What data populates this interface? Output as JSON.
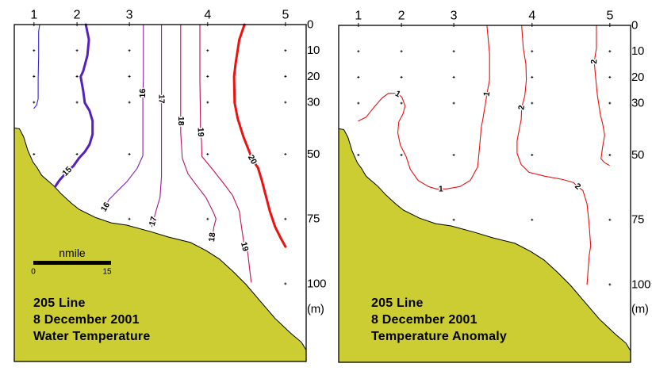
{
  "chart_data": [
    {
      "type": "line",
      "title_lines": [
        "205 Line",
        "8 December 2001",
        "Water Temperature"
      ],
      "xlabel": "",
      "ylabel": "(m)",
      "xlim": [
        -3.8,
        52.5
      ],
      "ylim": [
        0,
        130
      ],
      "y_ticks": [
        0,
        10,
        20,
        30,
        50,
        75,
        100
      ],
      "stations": [
        {
          "label": "1",
          "distance": 0,
          "sample_depths": [
            10,
            20,
            30,
            50
          ]
        },
        {
          "label": "2",
          "distance": 8.3,
          "sample_depths": [
            10,
            20,
            30,
            50
          ]
        },
        {
          "label": "3",
          "distance": 18.4,
          "sample_depths": [
            10,
            20,
            30,
            50,
            75
          ]
        },
        {
          "label": "4",
          "distance": 33.5,
          "sample_depths": [
            10,
            20,
            30,
            50,
            75
          ]
        },
        {
          "label": "5",
          "distance": 48.5,
          "sample_depths": [
            10,
            20,
            30,
            50,
            75,
            100
          ]
        }
      ],
      "scale_bar": {
        "label": "nmile",
        "start_label": "0",
        "end_label": "15",
        "length": 15
      },
      "seabed": {
        "color": "#CCCC33",
        "points": [
          [
            -3.8,
            39.9
          ],
          [
            -2.8,
            40.2
          ],
          [
            -2.0,
            43.3
          ],
          [
            -1.2,
            48.5
          ],
          [
            -0.2,
            53.0
          ],
          [
            0.6,
            55.2
          ],
          [
            1.5,
            58.2
          ],
          [
            2.6,
            60.1
          ],
          [
            3.8,
            62.2
          ],
          [
            5.2,
            65.2
          ],
          [
            7.2,
            68.9
          ],
          [
            8.7,
            71.3
          ],
          [
            11.8,
            74.4
          ],
          [
            14.9,
            76.5
          ],
          [
            17.9,
            77.4
          ],
          [
            22.5,
            79.9
          ],
          [
            26.0,
            82.0
          ],
          [
            30.2,
            84.1
          ],
          [
            33.2,
            87.2
          ],
          [
            35.8,
            90.5
          ],
          [
            38.3,
            95.1
          ],
          [
            40.9,
            100.3
          ],
          [
            43.5,
            106.4
          ],
          [
            46.5,
            113.4
          ],
          [
            49.6,
            119.2
          ],
          [
            51.6,
            122.6
          ],
          [
            52.5,
            125.6
          ]
        ]
      },
      "series": [
        {
          "level": null,
          "color": "#3322CC",
          "emphasis": false,
          "points": [
            [
              1.1,
              0
            ],
            [
              0.9,
              2.7
            ],
            [
              0.9,
              11.9
            ],
            [
              0.8,
              21.0
            ],
            [
              0.8,
              28.7
            ],
            [
              0.5,
              31.1
            ],
            [
              0,
              32.3
            ]
          ],
          "labels": []
        },
        {
          "name": "15",
          "level": 15,
          "color": "#5520C0",
          "emphasis": true,
          "points": [
            [
              10.0,
              0
            ],
            [
              10.6,
              5.8
            ],
            [
              10.3,
              11.9
            ],
            [
              9.5,
              18.0
            ],
            [
              9.0,
              20.1
            ],
            [
              9.5,
              25.6
            ],
            [
              9.8,
              30.2
            ],
            [
              10.7,
              33.2
            ],
            [
              11.3,
              37.2
            ],
            [
              11.3,
              42.4
            ],
            [
              10.7,
              46.3
            ],
            [
              9.8,
              49.1
            ],
            [
              8.7,
              51.5
            ],
            [
              7.6,
              54.6
            ],
            [
              6.4,
              56.7
            ],
            [
              4.9,
              60.1
            ],
            [
              4.1,
              62.5
            ]
          ],
          "labels": [
            [
              6.4,
              56.7
            ]
          ]
        },
        {
          "name": "16",
          "level": 16,
          "color": "#8020B0",
          "emphasis": false,
          "points": [
            [
              21.1,
              0
            ],
            [
              21.1,
              21.0
            ],
            [
              21.0,
              26.5
            ],
            [
              21.0,
              36.3
            ],
            [
              21.0,
              50.6
            ],
            [
              19.9,
              55.5
            ],
            [
              17.9,
              60.7
            ],
            [
              15.9,
              64.6
            ],
            [
              14.4,
              67.7
            ],
            [
              13.8,
              70.4
            ],
            [
              13.2,
              71.6
            ]
          ],
          "labels": [
            [
              21.0,
              26.5
            ],
            [
              13.8,
              70.4
            ]
          ]
        },
        {
          "name": "17",
          "level": 17,
          "color": "#A01890",
          "emphasis": false,
          "points": [
            [
              24.6,
              0
            ],
            [
              24.6,
              28.7
            ],
            [
              24.6,
              36.3
            ],
            [
              24.6,
              58.5
            ],
            [
              24.3,
              66.8
            ],
            [
              23.7,
              70.7
            ],
            [
              23.0,
              75.9
            ],
            [
              22.7,
              78.0
            ]
          ],
          "labels": [
            [
              24.6,
              28.7
            ],
            [
              23.0,
              75.9
            ]
          ]
        },
        {
          "name": "18",
          "level": 18,
          "color": "#B0146E",
          "emphasis": false,
          "points": [
            [
              28.3,
              0
            ],
            [
              28.3,
              33.2
            ],
            [
              28.3,
              37.2
            ],
            [
              28.3,
              41.5
            ],
            [
              28.6,
              51.5
            ],
            [
              29.7,
              57.6
            ],
            [
              31.2,
              61.6
            ],
            [
              33.2,
              66.8
            ],
            [
              34.7,
              72.9
            ],
            [
              35.1,
              75.0
            ],
            [
              34.7,
              78.0
            ],
            [
              34.4,
              82.0
            ],
            [
              34.4,
              83.5
            ]
          ],
          "labels": [
            [
              28.3,
              37.2
            ],
            [
              34.4,
              82.0
            ]
          ]
        },
        {
          "name": "19",
          "level": 19,
          "color": "#C8104C",
          "emphasis": false,
          "points": [
            [
              32.0,
              0
            ],
            [
              32.0,
              21.0
            ],
            [
              32.1,
              36.3
            ],
            [
              32.1,
              41.5
            ],
            [
              32.3,
              44.8
            ],
            [
              32.4,
              50.9
            ],
            [
              34.3,
              55.5
            ],
            [
              36.7,
              61.6
            ],
            [
              38.3,
              65.9
            ],
            [
              39.6,
              72.0
            ],
            [
              40.1,
              79.0
            ],
            [
              40.6,
              85.7
            ],
            [
              41.2,
              87.5
            ],
            [
              41.9,
              99.4
            ]
          ],
          "labels": [
            [
              32.1,
              41.5
            ],
            [
              40.6,
              85.7
            ]
          ]
        },
        {
          "name": "20",
          "level": 20,
          "color": "#EE1111",
          "emphasis": true,
          "points": [
            [
              40.6,
              0
            ],
            [
              39.6,
              5.8
            ],
            [
              38.9,
              14.9
            ],
            [
              38.6,
              20.1
            ],
            [
              38.7,
              30.2
            ],
            [
              39.3,
              36.3
            ],
            [
              40.4,
              43.3
            ],
            [
              41.6,
              49.4
            ],
            [
              42.1,
              52.1
            ],
            [
              43.2,
              55.2
            ],
            [
              43.9,
              59.8
            ],
            [
              44.7,
              65.9
            ],
            [
              45.5,
              72.0
            ],
            [
              46.5,
              78.0
            ],
            [
              47.5,
              82.0
            ],
            [
              48.5,
              85.7
            ]
          ],
          "labels": [
            [
              42.1,
              52.1
            ]
          ]
        }
      ]
    },
    {
      "type": "line",
      "title_lines": [
        "205 Line",
        "8 December 2001",
        "Temperature Anomaly"
      ],
      "xlabel": "",
      "ylabel": "(m)",
      "xlim": [
        -3.8,
        52.5
      ],
      "ylim": [
        0,
        130
      ],
      "y_ticks": [
        0,
        10,
        20,
        30,
        50,
        75,
        100
      ],
      "stations": [
        {
          "label": "1",
          "distance": 0,
          "sample_depths": [
            10,
            20,
            30,
            50
          ]
        },
        {
          "label": "2",
          "distance": 8.3,
          "sample_depths": [
            10,
            20,
            30,
            50
          ]
        },
        {
          "label": "3",
          "distance": 18.4,
          "sample_depths": [
            10,
            20,
            30,
            50,
            75
          ]
        },
        {
          "label": "4",
          "distance": 33.5,
          "sample_depths": [
            10,
            20,
            30,
            50,
            75
          ]
        },
        {
          "label": "5",
          "distance": 48.5,
          "sample_depths": [
            10,
            20,
            30,
            50,
            75,
            100
          ]
        }
      ],
      "seabed": {
        "color": "#CCCC33",
        "points": [
          [
            -3.8,
            39.9
          ],
          [
            -2.8,
            40.2
          ],
          [
            -2.0,
            43.3
          ],
          [
            -1.2,
            48.5
          ],
          [
            -0.2,
            53.0
          ],
          [
            0.6,
            55.2
          ],
          [
            1.5,
            58.2
          ],
          [
            2.6,
            60.1
          ],
          [
            3.8,
            62.2
          ],
          [
            5.2,
            65.2
          ],
          [
            7.2,
            68.9
          ],
          [
            8.7,
            71.3
          ],
          [
            11.8,
            74.4
          ],
          [
            14.9,
            76.5
          ],
          [
            17.9,
            77.4
          ],
          [
            22.5,
            79.9
          ],
          [
            26.0,
            82.0
          ],
          [
            30.2,
            84.1
          ],
          [
            33.2,
            87.2
          ],
          [
            35.8,
            90.5
          ],
          [
            38.3,
            95.1
          ],
          [
            40.9,
            100.3
          ],
          [
            43.5,
            106.4
          ],
          [
            46.5,
            113.4
          ],
          [
            49.6,
            119.2
          ],
          [
            51.6,
            122.6
          ],
          [
            52.5,
            125.6
          ]
        ]
      },
      "series": [
        {
          "name": "1",
          "level": 1,
          "color": "#E81010",
          "emphasis": false,
          "points": [
            [
              0,
              36.9
            ],
            [
              1.5,
              35.4
            ],
            [
              3.2,
              31.1
            ],
            [
              4.6,
              28.0
            ],
            [
              5.8,
              26.2
            ],
            [
              7.0,
              26.2
            ],
            [
              7.6,
              26.5
            ],
            [
              8.4,
              27.7
            ],
            [
              9.0,
              31.1
            ],
            [
              8.6,
              34.1
            ],
            [
              7.8,
              37.2
            ],
            [
              7.6,
              41.5
            ],
            [
              8.1,
              46.3
            ],
            [
              9.2,
              50.6
            ],
            [
              10.0,
              55.5
            ],
            [
              11.5,
              59.8
            ],
            [
              13.5,
              62.2
            ],
            [
              15.0,
              63.1
            ],
            [
              15.9,
              63.1
            ],
            [
              17.0,
              63.1
            ],
            [
              19.6,
              62.2
            ],
            [
              21.6,
              59.8
            ],
            [
              23.0,
              54.6
            ],
            [
              23.4,
              46.3
            ],
            [
              23.7,
              39.3
            ],
            [
              24.0,
              36.3
            ],
            [
              24.5,
              30.2
            ],
            [
              24.8,
              26.5
            ],
            [
              25.3,
              21.0
            ],
            [
              25.3,
              11.0
            ],
            [
              24.8,
              0
            ]
          ],
          "labels": [
            [
              7.6,
              26.5
            ],
            [
              15.9,
              63.1
            ],
            [
              24.8,
              26.5
            ]
          ]
        },
        {
          "name": "2",
          "level": 2,
          "color": "#E81010",
          "emphasis": false,
          "points": [
            [
              31.5,
              0
            ],
            [
              31.8,
              8.8
            ],
            [
              32.3,
              14.9
            ],
            [
              32.4,
              21.0
            ],
            [
              32.1,
              27.1
            ],
            [
              31.5,
              31.7
            ],
            [
              31.4,
              36.3
            ],
            [
              30.6,
              44.5
            ],
            [
              30.6,
              49.4
            ],
            [
              31.4,
              53.7
            ],
            [
              32.9,
              56.7
            ],
            [
              36.0,
              58.2
            ],
            [
              39.5,
              59.5
            ],
            [
              41.5,
              60.7
            ],
            [
              42.3,
              62.2
            ],
            [
              43.3,
              63.7
            ],
            [
              44.1,
              68.9
            ],
            [
              44.5,
              76.8
            ],
            [
              44.8,
              85.1
            ],
            [
              44.5,
              89.0
            ],
            [
              44.1,
              100.0
            ]
          ],
          "labels": [
            [
              31.5,
              31.7
            ],
            [
              42.3,
              62.2
            ]
          ]
        },
        {
          "name": "2",
          "level": 2,
          "color": "#E81010",
          "emphasis": false,
          "points": [
            [
              45.9,
              0
            ],
            [
              45.9,
              8.8
            ],
            [
              45.5,
              14.0
            ],
            [
              45.8,
              21.0
            ],
            [
              46.1,
              27.1
            ],
            [
              46.7,
              34.8
            ],
            [
              47.1,
              37.8
            ],
            [
              47.5,
              42.4
            ],
            [
              47.1,
              47.0
            ],
            [
              46.8,
              51.5
            ],
            [
              47.5,
              53.0
            ],
            [
              48.4,
              54.0
            ]
          ],
          "labels": [
            [
              45.5,
              14.0
            ]
          ]
        }
      ]
    }
  ]
}
